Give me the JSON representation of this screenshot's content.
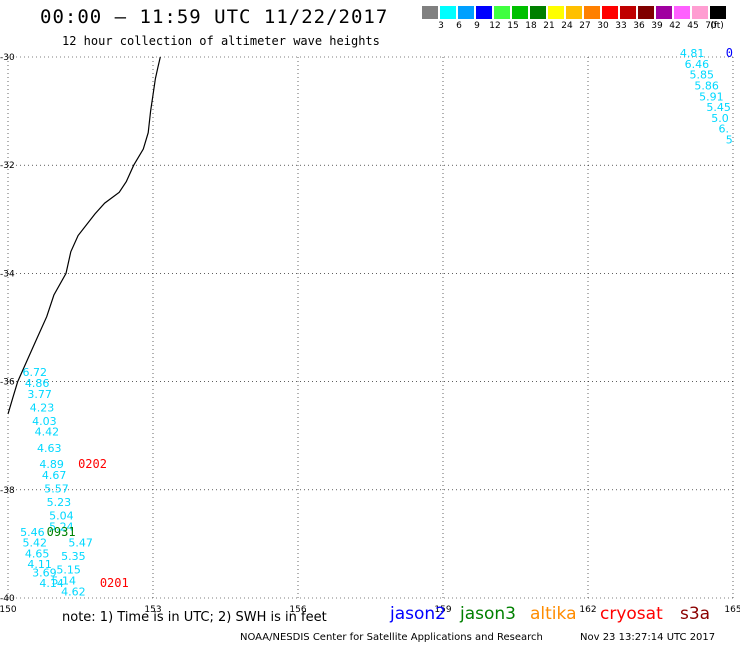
{
  "header": {
    "title": "00:00 — 11:59 UTC 11/22/2017",
    "subtitle": "12 hour collection of altimeter wave heights"
  },
  "scale": {
    "unit": "(ft)",
    "items": [
      {
        "color": "#808080",
        "label": "3"
      },
      {
        "color": "#00ffff",
        "label": "6"
      },
      {
        "color": "#00a0ff",
        "label": "9"
      },
      {
        "color": "#0000ff",
        "label": "12"
      },
      {
        "color": "#40ff40",
        "label": "15"
      },
      {
        "color": "#00c000",
        "label": "18"
      },
      {
        "color": "#008000",
        "label": "21"
      },
      {
        "color": "#ffff00",
        "label": "24"
      },
      {
        "color": "#ffc000",
        "label": "27"
      },
      {
        "color": "#ff8000",
        "label": "30"
      },
      {
        "color": "#ff0000",
        "label": "33"
      },
      {
        "color": "#c00000",
        "label": "36"
      },
      {
        "color": "#800000",
        "label": "39"
      },
      {
        "color": "#a000a0",
        "label": "42"
      },
      {
        "color": "#ff60ff",
        "label": "45"
      },
      {
        "color": "#ff9ed2",
        "label": "70"
      },
      {
        "color": "#000000",
        "label": ""
      }
    ]
  },
  "map": {
    "lon_range": [
      150,
      165
    ],
    "lat_range": [
      -40,
      -30
    ],
    "lon_ticks": [
      "150",
      "153",
      "156",
      "159",
      "162",
      "165"
    ],
    "lat_ticks": [
      "-30",
      "-32",
      "-34",
      "-36",
      "-38",
      "-40"
    ],
    "pass_labels": [
      {
        "text": "0202",
        "lon": 151.45,
        "lat": -37.6,
        "color": "#ff0000"
      },
      {
        "text": "0931",
        "lon": 150.8,
        "lat": -38.85,
        "color": "#008000"
      },
      {
        "text": "0201",
        "lon": 151.9,
        "lat": -39.8,
        "color": "#ff0000"
      },
      {
        "text": "0",
        "lon": 164.85,
        "lat": -30.0,
        "color": "#0000ff"
      }
    ],
    "wave_columns": [
      {
        "color": "#00d8ff",
        "values": [
          {
            "v": "6.72",
            "lon": 150.3,
            "lat": -35.9
          },
          {
            "v": "4.86",
            "lon": 150.35,
            "lat": -36.1
          },
          {
            "v": "3.77",
            "lon": 150.4,
            "lat": -36.3
          },
          {
            "v": "4.23",
            "lon": 150.45,
            "lat": -36.55
          },
          {
            "v": "4.03",
            "lon": 150.5,
            "lat": -36.8
          },
          {
            "v": "4.42",
            "lon": 150.55,
            "lat": -37.0
          },
          {
            "v": "4.63",
            "lon": 150.6,
            "lat": -37.3
          },
          {
            "v": "4.89",
            "lon": 150.65,
            "lat": -37.6
          },
          {
            "v": "4.67",
            "lon": 150.7,
            "lat": -37.8
          },
          {
            "v": "5.57",
            "lon": 150.75,
            "lat": -38.05
          },
          {
            "v": "5.23",
            "lon": 150.8,
            "lat": -38.3
          },
          {
            "v": "5.04",
            "lon": 150.85,
            "lat": -38.55
          },
          {
            "v": "5.24",
            "lon": 150.85,
            "lat": -38.75
          },
          {
            "v": "5.46",
            "lon": 150.25,
            "lat": -38.85
          },
          {
            "v": "5.42",
            "lon": 150.3,
            "lat": -39.05
          },
          {
            "v": "5.47",
            "lon": 151.25,
            "lat": -39.05
          },
          {
            "v": "4.65",
            "lon": 150.35,
            "lat": -39.25
          },
          {
            "v": "5.35",
            "lon": 151.1,
            "lat": -39.3
          },
          {
            "v": "4.11",
            "lon": 150.4,
            "lat": -39.45
          },
          {
            "v": "5.15",
            "lon": 151.0,
            "lat": -39.55
          },
          {
            "v": "3.69",
            "lon": 150.5,
            "lat": -39.6
          },
          {
            "v": "5.14",
            "lon": 150.9,
            "lat": -39.75
          },
          {
            "v": "4.14",
            "lon": 150.65,
            "lat": -39.8
          },
          {
            "v": "4.62",
            "lon": 151.1,
            "lat": -39.95
          }
        ]
      },
      {
        "color": "#00d8ff",
        "values": [
          {
            "v": "4.81",
            "lon": 163.9,
            "lat": -30.0
          },
          {
            "v": "6.46",
            "lon": 164.0,
            "lat": -30.2
          },
          {
            "v": "5.85",
            "lon": 164.1,
            "lat": -30.4
          },
          {
            "v": "5.86",
            "lon": 164.2,
            "lat": -30.6
          },
          {
            "v": "5.91",
            "lon": 164.3,
            "lat": -30.8
          },
          {
            "v": "5.45",
            "lon": 164.45,
            "lat": -31.0
          },
          {
            "v": "5.0",
            "lon": 164.55,
            "lat": -31.2
          },
          {
            "v": "6.",
            "lon": 164.7,
            "lat": -31.4
          },
          {
            "v": "5",
            "lon": 164.85,
            "lat": -31.6
          }
        ]
      }
    ],
    "coastline": [
      [
        153.15,
        -30.0
      ],
      [
        153.1,
        -30.2
      ],
      [
        153.05,
        -30.4
      ],
      [
        153.0,
        -30.7
      ],
      [
        152.95,
        -31.0
      ],
      [
        152.9,
        -31.4
      ],
      [
        152.8,
        -31.7
      ],
      [
        152.6,
        -32.0
      ],
      [
        152.45,
        -32.3
      ],
      [
        152.3,
        -32.5
      ],
      [
        152.0,
        -32.7
      ],
      [
        151.8,
        -32.9
      ],
      [
        151.45,
        -33.3
      ],
      [
        151.3,
        -33.6
      ],
      [
        151.2,
        -34.0
      ],
      [
        150.95,
        -34.4
      ],
      [
        150.8,
        -34.8
      ],
      [
        150.6,
        -35.2
      ],
      [
        150.4,
        -35.6
      ],
      [
        150.2,
        -36.0
      ],
      [
        150.1,
        -36.3
      ],
      [
        150.0,
        -36.6
      ]
    ]
  },
  "footer": {
    "note": "note: 1) Time is in UTC; 2) SWH is in feet",
    "satellites": [
      {
        "name": "jason2",
        "color": "#0000ff"
      },
      {
        "name": "jason3",
        "color": "#008000"
      },
      {
        "name": "altika",
        "color": "#ff8c00"
      },
      {
        "name": "cryosat",
        "color": "#ff0000"
      },
      {
        "name": "s3a",
        "color": "#8b0000"
      }
    ],
    "credit": "NOAA/NESDIS Center for Satellite Applications and Research",
    "timestamp": "Nov 23 13:27:14 UTC 2017"
  }
}
